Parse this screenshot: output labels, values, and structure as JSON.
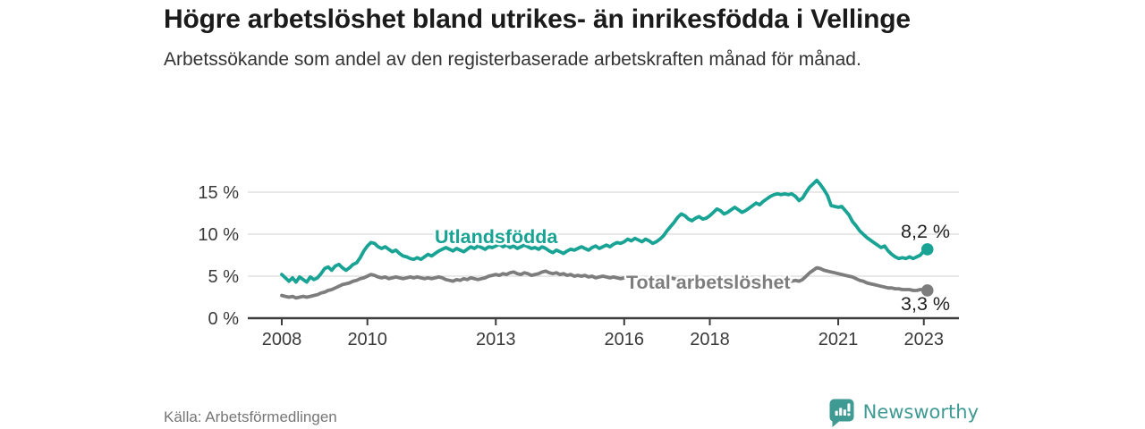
{
  "header": {
    "title": "Högre arbetslöshet bland utrikes- än inrikesfödda i Vellinge",
    "subtitle": "Arbetssökande som andel av den registerbaserade arbetskraften månad för månad."
  },
  "footer": {
    "source": "Källa: Arbetsförmedlingen",
    "brand_name": "Newsworthy",
    "brand_icon": "bar-chart-speech-bubble-icon"
  },
  "colors": {
    "accent_teal": "#18a394",
    "series_gray": "#7d7d7d",
    "grid": "#d9d9d9",
    "axis": "#3d3d3d",
    "tick_text": "#3a3a3a",
    "annotation_text": "#222222",
    "brand_teal": "#3f9a93"
  },
  "chart_data": {
    "type": "line",
    "title": "Högre arbetslöshet bland utrikes- än inrikesfödda i Vellinge",
    "xlabel": "",
    "ylabel": "",
    "x_unit": "month",
    "x_start_year": 2008,
    "x_end": "2023-02",
    "xlim": [
      2007.2,
      2023.85
    ],
    "ylim": [
      0,
      17.5
    ],
    "grid": true,
    "legend_position": "inline-labels",
    "x_ticks": [
      2008,
      2010,
      2013,
      2016,
      2018,
      2021,
      2023
    ],
    "x_tick_labels": [
      "2008",
      "2010",
      "2013",
      "2016",
      "2018",
      "2021",
      "2023"
    ],
    "y_ticks": [
      0,
      5,
      10,
      15
    ],
    "y_tick_labels": [
      "0 %",
      "5 %",
      "10 %",
      "15 %"
    ],
    "series": [
      {
        "name": "Utlandsfödda",
        "color": "#18a394",
        "end_label": "8,2 %",
        "end_value": 8.2,
        "values": [
          5.2,
          4.8,
          4.4,
          4.8,
          4.3,
          4.9,
          4.6,
          4.3,
          4.9,
          4.6,
          4.8,
          5.3,
          5.9,
          6.1,
          5.7,
          6.2,
          6.4,
          6.0,
          5.7,
          6.0,
          6.4,
          6.6,
          7.2,
          8.0,
          8.6,
          9.0,
          8.9,
          8.5,
          8.3,
          8.5,
          8.2,
          7.9,
          8.1,
          7.7,
          7.4,
          7.3,
          7.1,
          7.0,
          7.2,
          7.0,
          7.3,
          7.6,
          7.4,
          7.7,
          8.0,
          8.2,
          8.4,
          8.2,
          8.0,
          8.3,
          8.1,
          7.9,
          8.2,
          8.5,
          8.3,
          8.6,
          8.4,
          8.2,
          8.5,
          8.4,
          8.6,
          8.8,
          8.5,
          8.7,
          8.4,
          8.6,
          8.3,
          8.5,
          8.7,
          8.5,
          8.3,
          8.4,
          8.2,
          8.5,
          8.3,
          8.0,
          7.8,
          8.1,
          7.9,
          7.7,
          8.0,
          8.2,
          8.1,
          8.3,
          8.5,
          8.3,
          8.1,
          8.4,
          8.6,
          8.3,
          8.5,
          8.7,
          8.5,
          8.8,
          9.0,
          8.9,
          9.1,
          9.4,
          9.2,
          9.5,
          9.3,
          9.1,
          9.4,
          9.2,
          8.9,
          9.1,
          9.4,
          9.8,
          10.4,
          10.9,
          11.4,
          12.0,
          12.4,
          12.2,
          11.8,
          11.6,
          11.9,
          12.1,
          11.8,
          11.9,
          12.2,
          12.6,
          13.0,
          12.8,
          12.4,
          12.6,
          12.9,
          13.2,
          12.9,
          12.6,
          12.8,
          13.1,
          13.4,
          13.7,
          13.5,
          13.9,
          14.2,
          14.5,
          14.7,
          14.8,
          14.7,
          14.8,
          14.7,
          14.8,
          14.5,
          14.0,
          14.3,
          15.0,
          15.6,
          16.0,
          16.4,
          15.9,
          15.3,
          14.6,
          13.4,
          13.3,
          13.2,
          13.3,
          12.8,
          12.3,
          11.5,
          11.0,
          10.4,
          10.0,
          9.6,
          9.3,
          9.0,
          8.7,
          8.4,
          8.6,
          8.0,
          7.6,
          7.3,
          7.1,
          7.2,
          7.1,
          7.3,
          7.1,
          7.3,
          7.5,
          8.0,
          8.2
        ]
      },
      {
        "name": "Total arbetslöshet",
        "color": "#7d7d7d",
        "end_label": "3,3 %",
        "end_value": 3.3,
        "values": [
          2.7,
          2.6,
          2.5,
          2.6,
          2.4,
          2.5,
          2.6,
          2.5,
          2.6,
          2.7,
          2.8,
          3.0,
          3.1,
          3.3,
          3.4,
          3.6,
          3.8,
          4.0,
          4.1,
          4.2,
          4.4,
          4.5,
          4.7,
          4.8,
          5.0,
          5.2,
          5.1,
          4.9,
          4.8,
          4.9,
          4.7,
          4.8,
          4.9,
          4.8,
          4.7,
          4.8,
          4.9,
          4.8,
          4.9,
          4.8,
          4.7,
          4.8,
          4.7,
          4.8,
          4.9,
          4.8,
          4.6,
          4.5,
          4.4,
          4.6,
          4.5,
          4.7,
          4.6,
          4.8,
          4.7,
          4.6,
          4.7,
          4.8,
          5.0,
          5.1,
          5.2,
          5.1,
          5.3,
          5.2,
          5.4,
          5.5,
          5.3,
          5.2,
          5.4,
          5.3,
          5.1,
          5.2,
          5.3,
          5.5,
          5.6,
          5.4,
          5.3,
          5.4,
          5.2,
          5.3,
          5.1,
          5.2,
          5.0,
          5.1,
          5.0,
          5.1,
          4.9,
          5.0,
          4.8,
          4.9,
          5.0,
          4.9,
          4.8,
          4.9,
          4.8,
          4.7,
          4.8,
          4.9,
          4.8,
          4.7,
          4.8,
          4.6,
          4.7,
          4.6,
          4.5,
          4.6,
          4.7,
          4.6,
          4.7,
          4.8,
          4.7,
          4.6,
          4.7,
          4.6,
          4.5,
          4.6,
          4.5,
          4.6,
          4.5,
          4.4,
          4.5,
          4.6,
          4.5,
          4.4,
          4.3,
          4.4,
          4.5,
          4.4,
          4.3,
          4.4,
          4.3,
          4.4,
          4.3,
          4.4,
          4.5,
          4.4,
          4.3,
          4.4,
          4.5,
          4.4,
          4.5,
          4.4,
          4.5,
          4.4,
          4.5,
          4.4,
          4.6,
          5.0,
          5.4,
          5.7,
          6.0,
          5.9,
          5.7,
          5.6,
          5.5,
          5.4,
          5.3,
          5.2,
          5.1,
          5.0,
          4.9,
          4.7,
          4.5,
          4.4,
          4.2,
          4.1,
          4.0,
          3.9,
          3.8,
          3.7,
          3.6,
          3.6,
          3.5,
          3.5,
          3.4,
          3.4,
          3.4,
          3.3,
          3.3,
          3.4,
          3.4,
          3.3
        ]
      }
    ]
  }
}
